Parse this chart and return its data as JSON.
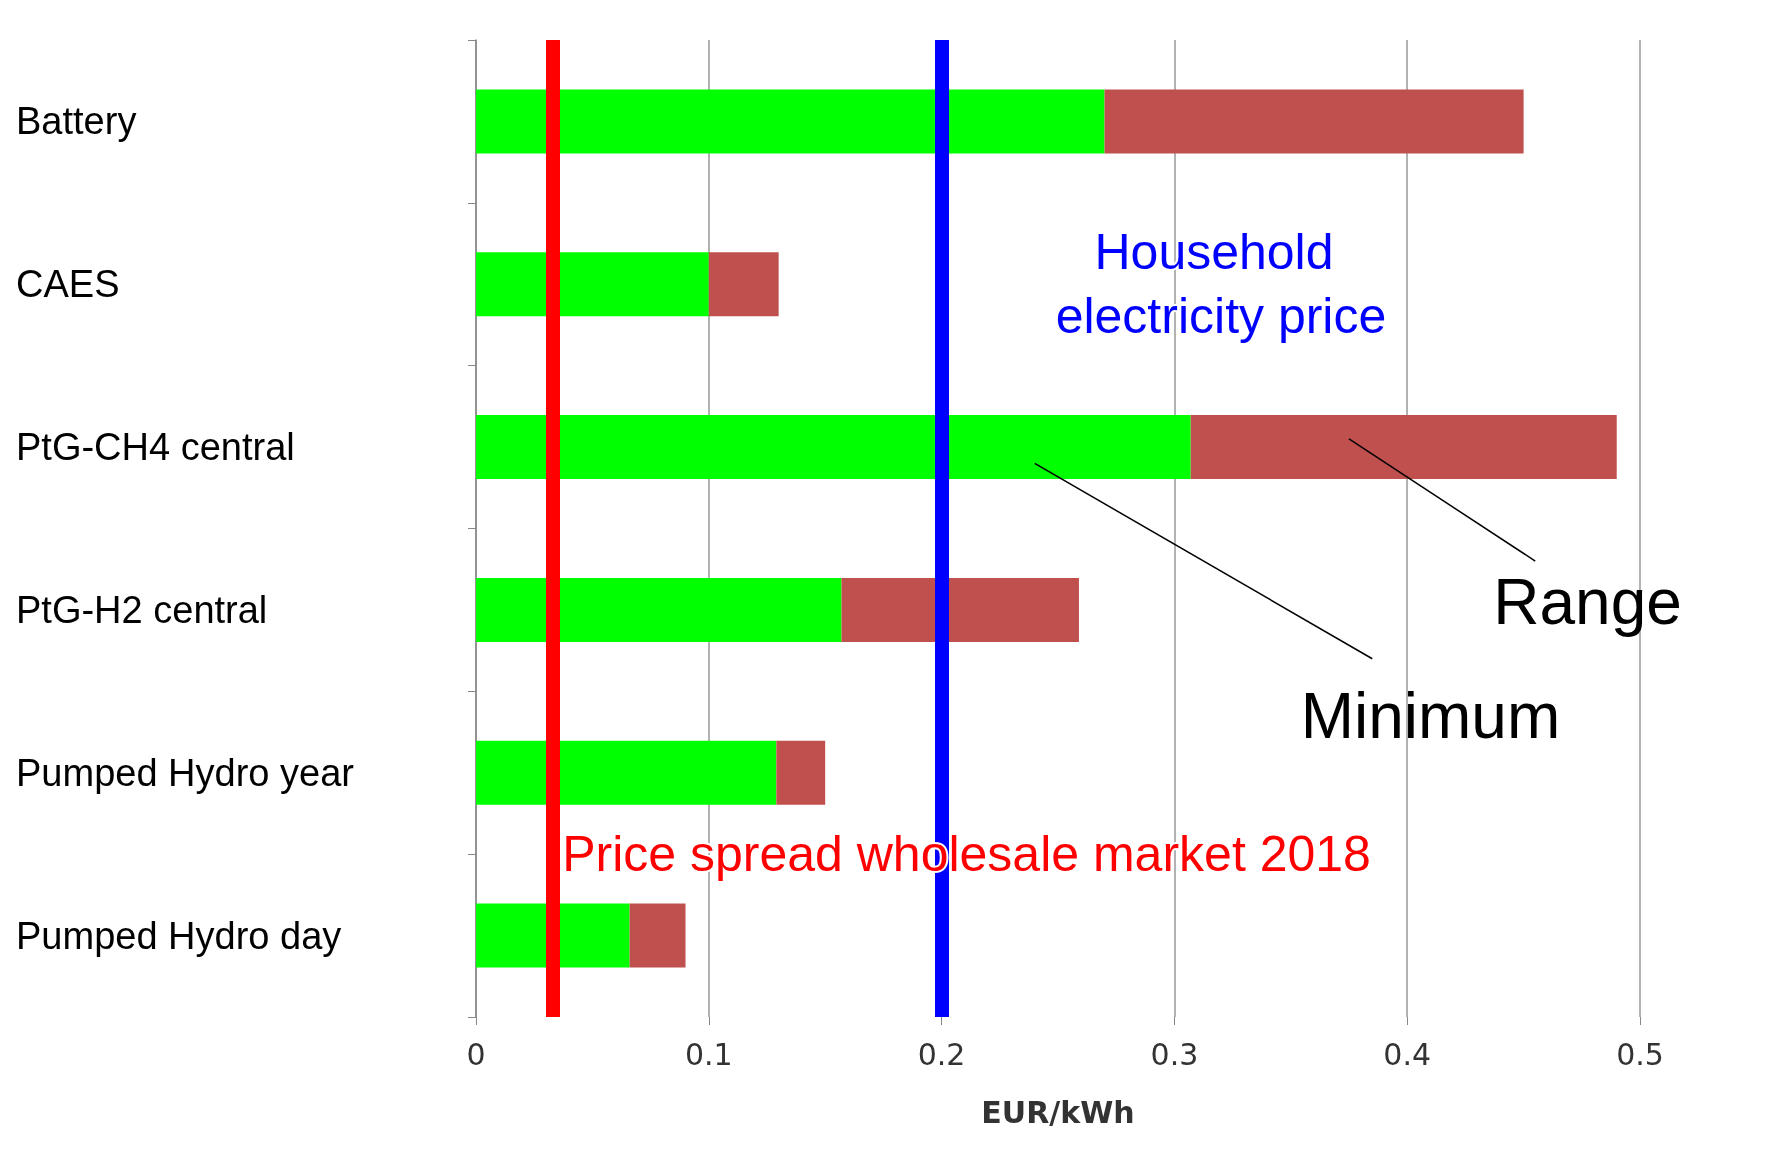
{
  "chart_data": {
    "type": "bar",
    "orientation": "horizontal",
    "stacked": true,
    "xlabel": "EUR/kWh",
    "categories": [
      "Battery",
      "CAES",
      "PtG-CH4 central",
      "PtG-H2 central",
      "Pumped Hydro year",
      "Pumped Hydro day"
    ],
    "series": [
      {
        "name": "Minimum",
        "color": "#00ff00",
        "values": [
          0.27,
          0.1,
          0.307,
          0.157,
          0.129,
          0.066
        ]
      },
      {
        "name": "Range",
        "color": "#c0504d",
        "values": [
          0.18,
          0.03,
          0.183,
          0.102,
          0.021,
          0.024
        ]
      }
    ],
    "xlim": [
      0,
      0.5
    ],
    "xticks": [
      0,
      0.1,
      0.2,
      0.3,
      0.4,
      0.5
    ],
    "grid": "x",
    "legend": false,
    "ref_lines": [
      {
        "axis": "x",
        "value": 0.2,
        "label": "Household electricity price",
        "color": "#0000ff"
      },
      {
        "axis": "x",
        "value": 0.033,
        "label": "Price spread wholesale market 2018",
        "color": "#ff0000"
      }
    ]
  }
}
